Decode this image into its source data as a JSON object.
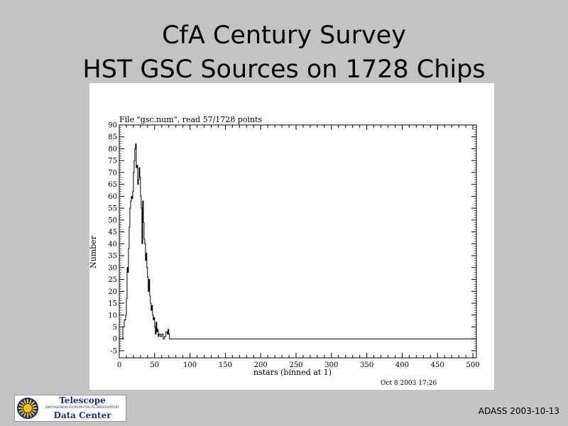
{
  "slide": {
    "title_line1": "CfA Century Survey",
    "title_line2": "HST GSC Sources on 1728 Chips",
    "footer": "ADASS 2003-10-13"
  },
  "logo": {
    "line1": "Telescope",
    "line2": "SMITHSONIAN ASTROPHYSICAL OBSERVATORY",
    "line3": "Data Center",
    "colors": {
      "text": "#1c2f86",
      "sun": "#f2c400",
      "sun_bg": "#1c2f86"
    }
  },
  "chart_data": {
    "type": "line",
    "title": "File \"gsc.num\", read  57/1728 points",
    "xlabel": "nstars (binned at 1)",
    "ylabel": "Number",
    "timestamp": "Oct  8 2003 17:26",
    "xlim": [
      0,
      505
    ],
    "ylim": [
      -8,
      90
    ],
    "x_ticks": [
      0,
      50,
      100,
      150,
      200,
      250,
      300,
      350,
      400,
      450,
      500
    ],
    "y_ticks": [
      -5,
      0,
      5,
      10,
      15,
      20,
      25,
      30,
      35,
      40,
      45,
      50,
      55,
      60,
      65,
      70,
      75,
      80,
      85,
      90
    ],
    "grid": false,
    "series": [
      {
        "x": [
          0,
          5,
          7,
          9,
          10,
          11,
          12,
          13,
          14,
          15,
          16,
          17,
          18,
          19,
          20,
          21,
          22,
          23,
          24,
          25,
          26,
          27,
          28,
          29,
          30,
          31,
          32,
          33,
          34,
          35,
          36,
          37,
          38,
          39,
          40,
          41,
          42,
          43,
          44,
          45,
          46,
          47,
          48,
          49,
          50,
          51,
          52,
          53,
          54,
          55,
          56,
          58,
          60,
          62,
          64,
          66,
          68,
          69,
          70,
          71,
          72,
          505
        ],
        "y": [
          0,
          5,
          8,
          10,
          17,
          30,
          28,
          38,
          47,
          55,
          58,
          60,
          59,
          62,
          70,
          75,
          80,
          82,
          72,
          73,
          65,
          67,
          72,
          68,
          60,
          55,
          40,
          58,
          49,
          42,
          40,
          33,
          36,
          30,
          26,
          20,
          25,
          18,
          15,
          12,
          14,
          10,
          8,
          9,
          5,
          2,
          7,
          3,
          4,
          1,
          2,
          1,
          2,
          0,
          1,
          3,
          2,
          4,
          2,
          0,
          0,
          0
        ]
      }
    ]
  }
}
